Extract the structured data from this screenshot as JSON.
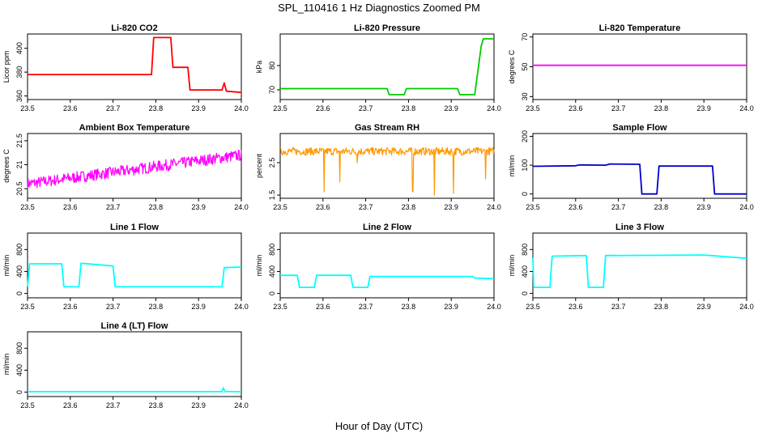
{
  "title": "SPL_110416  1 Hz Diagnostics Zoomed PM",
  "xlabel": "Hour of Day (UTC)",
  "chart_data": [
    {
      "type": "line",
      "title": "Li-820 CO2",
      "ylabel": "Licor ppm",
      "xlim": [
        23.5,
        24.0
      ],
      "ylim": [
        357,
        412
      ],
      "color": "#ff0000",
      "xticks": [
        "23.5",
        "23.6",
        "23.7",
        "23.8",
        "23.9",
        "24.0"
      ],
      "yticks": [
        360,
        380,
        400
      ],
      "series": [
        {
          "x": [
            23.5,
            23.79,
            23.795,
            23.835,
            23.84,
            23.875,
            23.88,
            23.955,
            23.96,
            23.965,
            24.0
          ],
          "y": [
            378,
            378,
            409,
            409,
            384,
            384,
            365,
            365,
            371,
            364,
            363
          ]
        }
      ]
    },
    {
      "type": "line",
      "title": "Li-820 Pressure",
      "ylabel": "kPa",
      "xlim": [
        23.5,
        24.0
      ],
      "ylim": [
        66,
        93
      ],
      "color": "#00cc00",
      "xticks": [
        "23.5",
        "23.6",
        "23.7",
        "23.8",
        "23.9",
        "24.0"
      ],
      "yticks": [
        70,
        80
      ],
      "series": [
        {
          "x": [
            23.5,
            23.75,
            23.755,
            23.79,
            23.795,
            23.915,
            23.92,
            23.955,
            23.97,
            23.975,
            24.0
          ],
          "y": [
            70.5,
            70.5,
            68,
            68,
            70.5,
            70.5,
            68,
            68,
            88,
            91,
            91
          ]
        }
      ]
    },
    {
      "type": "line",
      "title": "Li-820 Temperature",
      "ylabel": "degrees C",
      "xlim": [
        23.5,
        24.0
      ],
      "ylim": [
        28,
        72
      ],
      "color": "#ff00ff",
      "xticks": [
        "23.5",
        "23.6",
        "23.7",
        "23.8",
        "23.9",
        "24.0"
      ],
      "yticks": [
        30,
        50,
        70
      ],
      "series": [
        {
          "x": [
            23.5,
            24.0
          ],
          "y": [
            51,
            51
          ]
        }
      ]
    },
    {
      "type": "line",
      "title": "Ambient Box Temperature",
      "ylabel": "degrees C",
      "xlim": [
        23.5,
        24.0
      ],
      "ylim": [
        20.3,
        21.65
      ],
      "color": "#ff00ff",
      "xticks": [
        "23.5",
        "23.6",
        "23.7",
        "23.8",
        "23.9",
        "24.0"
      ],
      "yticks": [
        20.5,
        21.0,
        21.5
      ],
      "series": [
        {
          "x": [
            23.5,
            23.75,
            24.0
          ],
          "y": [
            20.6,
            20.9,
            21.2
          ],
          "noise": 0.12
        }
      ]
    },
    {
      "type": "line",
      "title": "Gas Stream RH",
      "ylabel": "percent",
      "xlim": [
        23.5,
        24.0
      ],
      "ylim": [
        1.4,
        3.4
      ],
      "color": "#ff9900",
      "xticks": [
        "23.5",
        "23.6",
        "23.7",
        "23.8",
        "23.9",
        "24.0"
      ],
      "yticks": [
        1.5,
        2.5
      ],
      "series": [
        {
          "x": [
            23.5,
            24.0
          ],
          "y": [
            2.85,
            2.85
          ],
          "noise": 0.12,
          "spikes": [
            [
              23.603,
              1.6
            ],
            [
              23.64,
              1.9
            ],
            [
              23.81,
              1.6
            ],
            [
              23.86,
              1.5
            ],
            [
              23.905,
              1.55
            ],
            [
              23.98,
              2.0
            ],
            [
              23.68,
              2.5
            ]
          ]
        }
      ]
    },
    {
      "type": "line",
      "title": "Sample Flow",
      "ylabel": "ml/min",
      "xlim": [
        23.5,
        24.0
      ],
      "ylim": [
        -15,
        210
      ],
      "color": "#0000cc",
      "xticks": [
        "23.5",
        "23.6",
        "23.7",
        "23.8",
        "23.9",
        "24.0"
      ],
      "yticks": [
        0,
        100,
        200
      ],
      "series": [
        {
          "x": [
            23.5,
            23.6,
            23.61,
            23.67,
            23.68,
            23.75,
            23.755,
            23.79,
            23.795,
            23.92,
            23.925,
            24.0
          ],
          "y": [
            96,
            98,
            101,
            100,
            104,
            103,
            0,
            0,
            97,
            97,
            0,
            0
          ]
        }
      ]
    },
    {
      "type": "line",
      "title": "Line 1 Flow",
      "ylabel": "ml/min",
      "xlim": [
        23.5,
        24.0
      ],
      "ylim": [
        -80,
        1100
      ],
      "color": "#00ffff",
      "xticks": [
        "23.5",
        "23.6",
        "23.7",
        "23.8",
        "23.9",
        "24.0"
      ],
      "yticks": [
        0,
        400,
        800
      ],
      "series": [
        {
          "x": [
            23.5,
            23.505,
            23.58,
            23.585,
            23.62,
            23.625,
            23.7,
            23.705,
            23.955,
            23.96,
            24.0
          ],
          "y": [
            120,
            540,
            540,
            120,
            120,
            550,
            500,
            120,
            120,
            470,
            480
          ]
        }
      ]
    },
    {
      "type": "line",
      "title": "Line 2 Flow",
      "ylabel": "ml/min",
      "xlim": [
        23.5,
        24.0
      ],
      "ylim": [
        -80,
        1100
      ],
      "color": "#00ffff",
      "xticks": [
        "23.5",
        "23.6",
        "23.7",
        "23.8",
        "23.9",
        "24.0"
      ],
      "yticks": [
        0,
        400,
        800
      ],
      "series": [
        {
          "x": [
            23.5,
            23.54,
            23.545,
            23.58,
            23.585,
            23.665,
            23.67,
            23.705,
            23.71,
            23.95,
            23.955,
            24.0
          ],
          "y": [
            330,
            330,
            110,
            110,
            330,
            330,
            110,
            110,
            310,
            310,
            280,
            270
          ]
        }
      ]
    },
    {
      "type": "line",
      "title": "Line 3 Flow",
      "ylabel": "ml/min",
      "xlim": [
        23.5,
        24.0
      ],
      "ylim": [
        -80,
        1100
      ],
      "color": "#00ffff",
      "xticks": [
        "23.5",
        "23.6",
        "23.7",
        "23.8",
        "23.9",
        "24.0"
      ],
      "yticks": [
        0,
        400,
        800
      ],
      "series": [
        {
          "x": [
            23.5,
            23.502,
            23.505,
            23.54,
            23.545,
            23.625,
            23.63,
            23.665,
            23.67,
            23.9,
            24.0
          ],
          "y": [
            650,
            110,
            110,
            110,
            680,
            690,
            110,
            110,
            690,
            700,
            640
          ]
        }
      ]
    },
    {
      "type": "line",
      "title": "Line 4 (LT) Flow",
      "ylabel": "ml/min",
      "xlim": [
        23.5,
        24.0
      ],
      "ylim": [
        -80,
        1100
      ],
      "color": "#00ffff",
      "xticks": [
        "23.5",
        "23.6",
        "23.7",
        "23.8",
        "23.9",
        "24.0"
      ],
      "yticks": [
        0,
        400,
        800
      ],
      "series": [
        {
          "x": [
            23.5,
            23.955,
            23.958,
            23.962,
            24.0
          ],
          "y": [
            8,
            8,
            80,
            10,
            8
          ]
        }
      ]
    }
  ]
}
